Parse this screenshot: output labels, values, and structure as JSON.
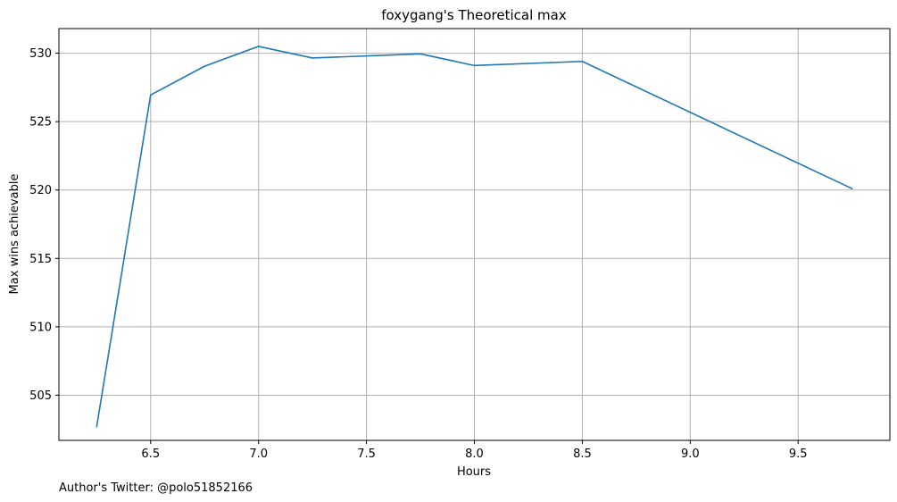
{
  "chart_data": {
    "type": "line",
    "title": "foxygang's Theoretical max",
    "xlabel": "Hours",
    "ylabel": "Max wins achievable",
    "footnote": "Author's Twitter: @polo51852166",
    "xlim": [
      6.075,
      9.925
    ],
    "ylim": [
      501.7,
      531.8
    ],
    "xticks": [
      6.5,
      7.0,
      7.5,
      8.0,
      8.5,
      9.0,
      9.5
    ],
    "xtick_labels": [
      "6.5",
      "7.0",
      "7.5",
      "8.0",
      "8.5",
      "9.0",
      "9.5"
    ],
    "yticks": [
      505,
      510,
      515,
      520,
      525,
      530
    ],
    "ytick_labels": [
      "505",
      "510",
      "515",
      "520",
      "525",
      "530"
    ],
    "grid": true,
    "series": [
      {
        "color": "#1f77b4",
        "x": [
          6.25,
          6.5,
          6.75,
          7.0,
          7.25,
          7.75,
          8.0,
          8.5,
          9.75
        ],
        "y": [
          502.7,
          526.95,
          529.05,
          530.5,
          529.65,
          529.95,
          529.1,
          529.4,
          520.1
        ]
      }
    ]
  }
}
